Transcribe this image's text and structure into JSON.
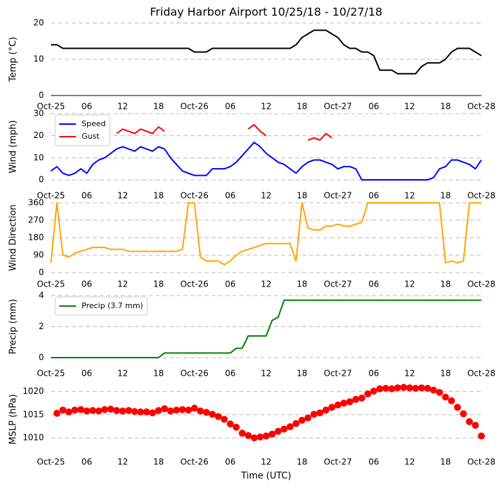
{
  "chart_data": [
    {
      "type": "line",
      "title": "Friday Harbor Airport 10/25/18 - 10/27/18",
      "ylabel": "Temp (°C)",
      "x": [
        0,
        1,
        2,
        3,
        4,
        5,
        6,
        7,
        8,
        9,
        10,
        11,
        12,
        13,
        14,
        15,
        16,
        17,
        18,
        19,
        20,
        21,
        22,
        23,
        24,
        25,
        26,
        27,
        28,
        29,
        30,
        31,
        32,
        33,
        34,
        35,
        36,
        37,
        38,
        39,
        40,
        41,
        42,
        43,
        44,
        45,
        46,
        47,
        48,
        49,
        50,
        51,
        52,
        53,
        54,
        55,
        56,
        57,
        58,
        59,
        60,
        61,
        62,
        63,
        64,
        65,
        66,
        67,
        68,
        69,
        70,
        71,
        72
      ],
      "series": [
        {
          "color": "#000000",
          "values": [
            14,
            14,
            13,
            13,
            13,
            13,
            13,
            13,
            13,
            13,
            13,
            13,
            13,
            13,
            13,
            13,
            13,
            13,
            13,
            13,
            13,
            13,
            13,
            13,
            12,
            12,
            12,
            13,
            13,
            13,
            13,
            13,
            13,
            13,
            13,
            13,
            13,
            13,
            13,
            13,
            13,
            14,
            16,
            17,
            18,
            18,
            18,
            17,
            16,
            14,
            13,
            13,
            12,
            12,
            11,
            7,
            7,
            7,
            6,
            6,
            6,
            6,
            8,
            9,
            9,
            9,
            10,
            12,
            13,
            13,
            13,
            12,
            11
          ]
        }
      ],
      "xlim": [
        0,
        72
      ],
      "xticks": [
        {
          "value": 0,
          "label": "Oct-25"
        },
        {
          "value": 6,
          "label": "06"
        },
        {
          "value": 12,
          "label": "12"
        },
        {
          "value": 18,
          "label": "18"
        },
        {
          "value": 24,
          "label": "Oct-26"
        },
        {
          "value": 30,
          "label": "06"
        },
        {
          "value": 36,
          "label": "12"
        },
        {
          "value": 42,
          "label": "18"
        },
        {
          "value": 48,
          "label": "Oct-27"
        },
        {
          "value": 54,
          "label": "06"
        },
        {
          "value": 60,
          "label": "12"
        },
        {
          "value": 66,
          "label": "18"
        },
        {
          "value": 72,
          "label": "Oct-28"
        }
      ],
      "ylim": [
        0,
        20
      ],
      "yticks": [
        0,
        10,
        20
      ],
      "grid": true
    },
    {
      "type": "line",
      "ylabel": "Wind (mph)",
      "legend": "upper left",
      "x": [
        0,
        1,
        2,
        3,
        4,
        5,
        6,
        7,
        8,
        9,
        10,
        11,
        12,
        13,
        14,
        15,
        16,
        17,
        18,
        19,
        20,
        21,
        22,
        23,
        24,
        25,
        26,
        27,
        28,
        29,
        30,
        31,
        32,
        33,
        34,
        35,
        36,
        37,
        38,
        39,
        40,
        41,
        42,
        43,
        44,
        45,
        46,
        47,
        48,
        49,
        50,
        51,
        52,
        53,
        54,
        55,
        56,
        57,
        58,
        59,
        60,
        61,
        62,
        63,
        64,
        65,
        66,
        67,
        68,
        69,
        70,
        71,
        72
      ],
      "series": [
        {
          "name": "Speed",
          "color": "#0000ff",
          "values": [
            4,
            6,
            3,
            2,
            3,
            5,
            3,
            7,
            9,
            10,
            12,
            14,
            15,
            14,
            13,
            15,
            14,
            13,
            15,
            14,
            10,
            7,
            4,
            3,
            2,
            2,
            2,
            5,
            5,
            5,
            6,
            8,
            11,
            14,
            17,
            15,
            12,
            10,
            8,
            7,
            5,
            3,
            6,
            8,
            9,
            9,
            8,
            7,
            5,
            6,
            6,
            5,
            0,
            0,
            0,
            0,
            0,
            0,
            0,
            0,
            0,
            0,
            0,
            0,
            1,
            5,
            6,
            9,
            9,
            8,
            7,
            5,
            9
          ]
        },
        {
          "name": "Gust",
          "color": "#ff0000",
          "values": [
            null,
            null,
            null,
            null,
            null,
            null,
            null,
            null,
            null,
            null,
            null,
            21,
            23,
            22,
            21,
            23,
            22,
            21,
            24,
            22,
            null,
            null,
            null,
            null,
            null,
            null,
            null,
            null,
            null,
            null,
            null,
            null,
            null,
            23,
            25,
            22,
            20,
            null,
            null,
            null,
            null,
            null,
            null,
            18,
            19,
            18,
            21,
            19,
            null,
            null,
            null,
            null,
            null,
            null,
            null,
            null,
            null,
            null,
            null,
            null,
            null,
            null,
            null,
            null,
            null,
            null,
            null,
            null,
            null,
            null,
            null,
            null,
            null
          ]
        }
      ],
      "xlim": [
        0,
        72
      ],
      "xticks": [
        {
          "value": 0,
          "label": "Oct-25"
        },
        {
          "value": 6,
          "label": "06"
        },
        {
          "value": 12,
          "label": "12"
        },
        {
          "value": 18,
          "label": "18"
        },
        {
          "value": 24,
          "label": "Oct-26"
        },
        {
          "value": 30,
          "label": "06"
        },
        {
          "value": 36,
          "label": "12"
        },
        {
          "value": 42,
          "label": "18"
        },
        {
          "value": 48,
          "label": "Oct-27"
        },
        {
          "value": 54,
          "label": "06"
        },
        {
          "value": 60,
          "label": "12"
        },
        {
          "value": 66,
          "label": "18"
        },
        {
          "value": 72,
          "label": "Oct-28"
        }
      ],
      "ylim": [
        0,
        30
      ],
      "yticks": [
        0,
        10,
        20,
        30
      ],
      "grid": true
    },
    {
      "type": "line",
      "ylabel": "Wind Direction",
      "x": [
        0,
        1,
        2,
        3,
        4,
        5,
        6,
        7,
        8,
        9,
        10,
        11,
        12,
        13,
        14,
        15,
        16,
        17,
        18,
        19,
        20,
        21,
        22,
        23,
        24,
        25,
        26,
        27,
        28,
        29,
        30,
        31,
        32,
        33,
        34,
        35,
        36,
        37,
        38,
        39,
        40,
        41,
        42,
        43,
        44,
        45,
        46,
        47,
        48,
        49,
        50,
        51,
        52,
        53,
        54,
        55,
        56,
        57,
        58,
        59,
        60,
        61,
        62,
        63,
        64,
        65,
        66,
        67,
        68,
        69,
        70,
        71,
        72
      ],
      "series": [
        {
          "color": "#ffa500",
          "values": [
            50,
            360,
            90,
            80,
            100,
            110,
            120,
            130,
            130,
            130,
            120,
            120,
            120,
            110,
            110,
            110,
            110,
            110,
            110,
            110,
            110,
            110,
            120,
            360,
            360,
            80,
            60,
            60,
            60,
            40,
            60,
            90,
            110,
            120,
            130,
            140,
            150,
            150,
            150,
            150,
            150,
            60,
            360,
            230,
            220,
            220,
            240,
            240,
            250,
            240,
            240,
            250,
            260,
            360,
            360,
            360,
            360,
            360,
            360,
            360,
            360,
            360,
            360,
            360,
            360,
            360,
            50,
            60,
            50,
            60,
            360,
            360,
            360
          ]
        }
      ],
      "xlim": [
        0,
        72
      ],
      "xticks": [
        {
          "value": 0,
          "label": "Oct-25"
        },
        {
          "value": 6,
          "label": "06"
        },
        {
          "value": 12,
          "label": "12"
        },
        {
          "value": 18,
          "label": "18"
        },
        {
          "value": 24,
          "label": "Oct-26"
        },
        {
          "value": 30,
          "label": "06"
        },
        {
          "value": 36,
          "label": "12"
        },
        {
          "value": 42,
          "label": "18"
        },
        {
          "value": 48,
          "label": "Oct-27"
        },
        {
          "value": 54,
          "label": "06"
        },
        {
          "value": 60,
          "label": "12"
        },
        {
          "value": 66,
          "label": "18"
        },
        {
          "value": 72,
          "label": "Oct-28"
        }
      ],
      "ylim": [
        0,
        360
      ],
      "yticks": [
        0,
        90,
        180,
        270,
        360
      ],
      "grid": true
    },
    {
      "type": "line",
      "ylabel": "Precip (mm)",
      "legend": "upper left",
      "x": [
        0,
        1,
        2,
        3,
        4,
        5,
        6,
        7,
        8,
        9,
        10,
        11,
        12,
        13,
        14,
        15,
        16,
        17,
        18,
        19,
        20,
        21,
        22,
        23,
        24,
        25,
        26,
        27,
        28,
        29,
        30,
        31,
        32,
        33,
        34,
        35,
        36,
        37,
        38,
        39,
        40,
        41,
        42,
        43,
        44,
        45,
        46,
        47,
        48,
        49,
        50,
        51,
        52,
        53,
        54,
        55,
        56,
        57,
        58,
        59,
        60,
        61,
        62,
        63,
        64,
        65,
        66,
        67,
        68,
        69,
        70,
        71,
        72
      ],
      "series": [
        {
          "name": "Precip (3.7 mm)",
          "color": "#008000",
          "values": [
            0,
            0,
            0,
            0,
            0,
            0,
            0,
            0,
            0,
            0,
            0,
            0,
            0,
            0,
            0,
            0,
            0,
            0,
            0,
            0.3,
            0.3,
            0.3,
            0.3,
            0.3,
            0.3,
            0.3,
            0.3,
            0.3,
            0.3,
            0.3,
            0.3,
            0.6,
            0.6,
            1.4,
            1.4,
            1.4,
            1.4,
            2.4,
            2.6,
            3.7,
            3.7,
            3.7,
            3.7,
            3.7,
            3.7,
            3.7,
            3.7,
            3.7,
            3.7,
            3.7,
            3.7,
            3.7,
            3.7,
            3.7,
            3.7,
            3.7,
            3.7,
            3.7,
            3.7,
            3.7,
            3.7,
            3.7,
            3.7,
            3.7,
            3.7,
            3.7,
            3.7,
            3.7,
            3.7,
            3.7,
            3.7,
            3.7,
            3.7
          ]
        }
      ],
      "xlim": [
        0,
        72
      ],
      "xticks": [
        {
          "value": 0,
          "label": "Oct-25"
        },
        {
          "value": 6,
          "label": "06"
        },
        {
          "value": 12,
          "label": "12"
        },
        {
          "value": 18,
          "label": "18"
        },
        {
          "value": 24,
          "label": "Oct-26"
        },
        {
          "value": 30,
          "label": "06"
        },
        {
          "value": 36,
          "label": "12"
        },
        {
          "value": 42,
          "label": "18"
        },
        {
          "value": 48,
          "label": "Oct-27"
        },
        {
          "value": 54,
          "label": "06"
        },
        {
          "value": 60,
          "label": "12"
        },
        {
          "value": 66,
          "label": "18"
        },
        {
          "value": 72,
          "label": "Oct-28"
        }
      ],
      "ylim": [
        0,
        4
      ],
      "yticks": [
        0,
        2,
        4
      ],
      "grid": true
    },
    {
      "type": "scatter",
      "ylabel": "MSLP (hPa)",
      "xlabel": "Time (UTC)",
      "x": [
        1,
        2,
        3,
        4,
        5,
        6,
        7,
        8,
        9,
        10,
        11,
        12,
        13,
        14,
        15,
        16,
        17,
        18,
        19,
        20,
        21,
        22,
        23,
        24,
        25,
        26,
        27,
        28,
        29,
        30,
        31,
        32,
        33,
        34,
        35,
        36,
        37,
        38,
        39,
        40,
        41,
        42,
        43,
        44,
        45,
        46,
        47,
        48,
        49,
        50,
        51,
        52,
        53,
        54,
        55,
        56,
        57,
        58,
        59,
        60,
        61,
        62,
        63,
        64,
        65,
        66,
        67,
        68,
        69,
        70,
        71,
        72
      ],
      "series": [
        {
          "color": "#ff0000",
          "values": [
            1015.3,
            1016,
            1015.6,
            1016,
            1016.1,
            1015.8,
            1015.9,
            1015.8,
            1016.1,
            1016.2,
            1015.9,
            1015.8,
            1015.9,
            1015.7,
            1015.6,
            1015.6,
            1015.4,
            1015.9,
            1016.3,
            1015.8,
            1016,
            1016.1,
            1016,
            1016.4,
            1015.8,
            1015.5,
            1015.1,
            1014.6,
            1014,
            1013,
            1012.3,
            1011,
            1010.5,
            1010,
            1010.2,
            1010.4,
            1010.8,
            1011.4,
            1011.9,
            1012.4,
            1013.1,
            1013.8,
            1014.3,
            1015.1,
            1015.4,
            1016,
            1016.6,
            1017.1,
            1017.5,
            1017.8,
            1018.3,
            1018.6,
            1019.5,
            1020.1,
            1020.6,
            1020.7,
            1020.6,
            1020.8,
            1020.9,
            1020.8,
            1020.7,
            1020.8,
            1020.7,
            1020.3,
            1019.8,
            1018.8,
            1018,
            1016.6,
            1015.2,
            1013.5,
            1012.7,
            1010.4
          ]
        }
      ],
      "xlim": [
        0,
        72
      ],
      "xticks": [
        {
          "value": 0,
          "label": "Oct-25"
        },
        {
          "value": 6,
          "label": "06"
        },
        {
          "value": 12,
          "label": "12"
        },
        {
          "value": 18,
          "label": "18"
        },
        {
          "value": 24,
          "label": "Oct-26"
        },
        {
          "value": 30,
          "label": "06"
        },
        {
          "value": 36,
          "label": "12"
        },
        {
          "value": 42,
          "label": "18"
        },
        {
          "value": 48,
          "label": "Oct-27"
        },
        {
          "value": 54,
          "label": "06"
        },
        {
          "value": 60,
          "label": "12"
        },
        {
          "value": 66,
          "label": "18"
        },
        {
          "value": 72,
          "label": "Oct-28"
        }
      ],
      "ylim": [
        1007,
        1021
      ],
      "yticks": [
        1010,
        1015,
        1020
      ],
      "grid": true
    }
  ]
}
